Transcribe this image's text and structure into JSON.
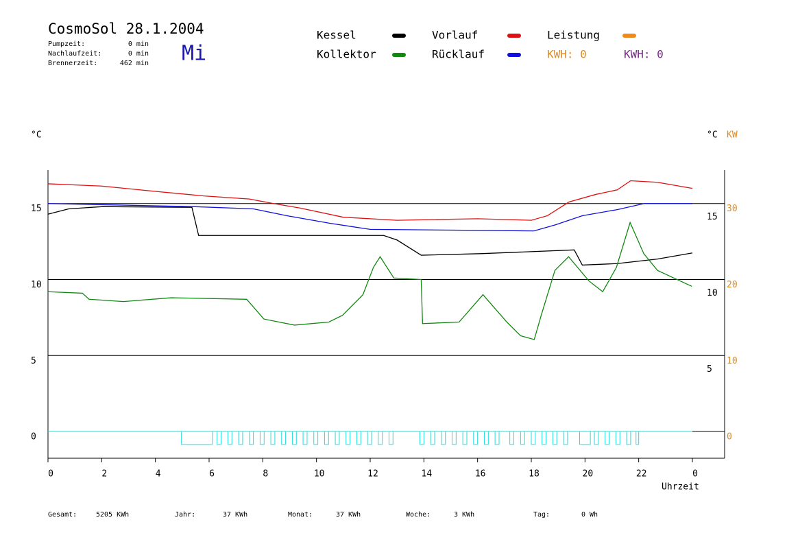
{
  "chart_data": {
    "type": "line",
    "title": "CosmoSol 28.1.2004",
    "day": "Mi",
    "stats": [
      {
        "label": "Pumpzeit:",
        "value": "0 min"
      },
      {
        "label": "Nachlaufzeit:",
        "value": "0 min"
      },
      {
        "label": "Brennerzeit:",
        "value": "462 min"
      }
    ],
    "kwh_labels": [
      {
        "text": "KWH: 0",
        "color": "#e08a1e"
      },
      {
        "text": "KWH: 0",
        "color": "#7a2a8a"
      }
    ],
    "ylabel": "°C",
    "y2label": "°C",
    "y3label": "KW",
    "xlabel": "Uhrzeit",
    "xlim": [
      0,
      25.2
    ],
    "xticks": [
      0,
      2,
      4,
      6,
      8,
      10,
      12,
      14,
      16,
      18,
      20,
      22,
      {
        "value": 24,
        "label": "0"
      }
    ],
    "ylim": [
      -1.76,
      17.2
    ],
    "yticks": [
      0,
      5,
      10,
      15
    ],
    "y2ticks": [
      5,
      10,
      15
    ],
    "y3lim": [
      -3.52,
      34.4
    ],
    "y3ticks": [
      0,
      10,
      20,
      30
    ],
    "series": [
      {
        "name": "Kessel",
        "color": "#000000",
        "x": [
          0,
          0.77,
          2.04,
          5.36,
          5.61,
          12.5,
          13.0,
          13.9,
          16.1,
          19.6,
          19.9,
          21.2,
          22.7,
          24
        ],
        "values": [
          14.3,
          14.65,
          14.8,
          14.75,
          12.9,
          12.9,
          12.6,
          11.6,
          11.7,
          11.95,
          10.95,
          11.05,
          11.35,
          11.75
        ]
      },
      {
        "name": "Kollektor",
        "color": "#118811",
        "x": [
          0,
          1.28,
          1.53,
          2.81,
          4.59,
          7.4,
          8.04,
          9.18,
          10.46,
          10.97,
          11.73,
          12.12,
          12.37,
          12.88,
          13.9,
          13.95,
          15.31,
          16.2,
          17.09,
          17.6,
          18.11,
          18.37,
          18.88,
          19.39,
          20.15,
          20.66,
          21.17,
          21.68,
          22.19,
          22.7,
          23.98
        ],
        "values": [
          9.2,
          9.1,
          8.7,
          8.55,
          8.8,
          8.7,
          7.4,
          7.0,
          7.2,
          7.65,
          9.0,
          10.8,
          11.5,
          10.1,
          10.0,
          7.1,
          7.2,
          9.0,
          7.2,
          6.3,
          6.05,
          7.65,
          10.6,
          11.5,
          9.9,
          9.2,
          10.8,
          13.75,
          11.7,
          10.6,
          9.55
        ]
      },
      {
        "name": "Vorlauf",
        "color": "#dd1111",
        "x": [
          0,
          2,
          4,
          5.8,
          7.5,
          8.4,
          9.4,
          11,
          13,
          16,
          18,
          18.6,
          19.4,
          20.4,
          21.2,
          21.7,
          22.7,
          24
        ],
        "values": [
          16.3,
          16.15,
          15.8,
          15.5,
          15.3,
          15.0,
          14.7,
          14.1,
          13.9,
          14.0,
          13.9,
          14.2,
          15.1,
          15.6,
          15.9,
          16.5,
          16.4,
          16.0
        ]
      },
      {
        "name": "Rücklauf",
        "color": "#1111dd",
        "x": [
          0,
          5.4,
          7.65,
          8.9,
          10.5,
          12,
          18.1,
          18.9,
          19.9,
          21.2,
          22.2,
          24
        ],
        "values": [
          15.0,
          14.8,
          14.65,
          14.2,
          13.7,
          13.3,
          13.2,
          13.6,
          14.2,
          14.6,
          15.0,
          15.0
        ]
      },
      {
        "name": "Leistung",
        "color": "#f08a1e",
        "axis": "y3",
        "x": [],
        "values": []
      }
    ],
    "pump": {
      "color": "#22dddd",
      "level": 0,
      "low": -0.85,
      "intervals": [
        [
          4.97,
          6.12
        ],
        [
          6.3,
          6.45
        ],
        [
          6.7,
          6.85
        ],
        [
          7.1,
          7.25
        ],
        [
          7.5,
          7.65
        ],
        [
          7.9,
          8.05
        ],
        [
          8.3,
          8.45
        ],
        [
          8.7,
          8.85
        ],
        [
          9.1,
          9.25
        ],
        [
          9.5,
          9.65
        ],
        [
          9.9,
          10.05
        ],
        [
          10.3,
          10.45
        ],
        [
          10.7,
          10.85
        ],
        [
          11.1,
          11.25
        ],
        [
          11.5,
          11.65
        ],
        [
          11.9,
          12.05
        ],
        [
          12.3,
          12.45
        ],
        [
          12.7,
          12.85
        ],
        [
          13.85,
          14.0
        ],
        [
          14.25,
          14.4
        ],
        [
          14.65,
          14.8
        ],
        [
          15.05,
          15.2
        ],
        [
          15.45,
          15.6
        ],
        [
          15.85,
          16.0
        ],
        [
          16.25,
          16.4
        ],
        [
          16.65,
          16.8
        ],
        [
          17.2,
          17.35
        ],
        [
          17.6,
          17.75
        ],
        [
          18.0,
          18.15
        ],
        [
          18.4,
          18.55
        ],
        [
          18.8,
          18.95
        ],
        [
          19.2,
          19.35
        ],
        [
          19.8,
          20.2
        ],
        [
          20.35,
          20.5
        ],
        [
          20.75,
          20.9
        ],
        [
          21.15,
          21.3
        ],
        [
          21.55,
          21.7
        ],
        [
          21.9,
          22.0
        ]
      ]
    },
    "totals": [
      {
        "label": "Gesamt:",
        "value": "5205 KWh"
      },
      {
        "label": "Jahr:",
        "value": "37 KWh"
      },
      {
        "label": "Monat:",
        "value": "37 KWh"
      },
      {
        "label": "Woche:",
        "value": "3 KWh"
      },
      {
        "label": "Tag:",
        "value": "0 Wh"
      }
    ]
  }
}
